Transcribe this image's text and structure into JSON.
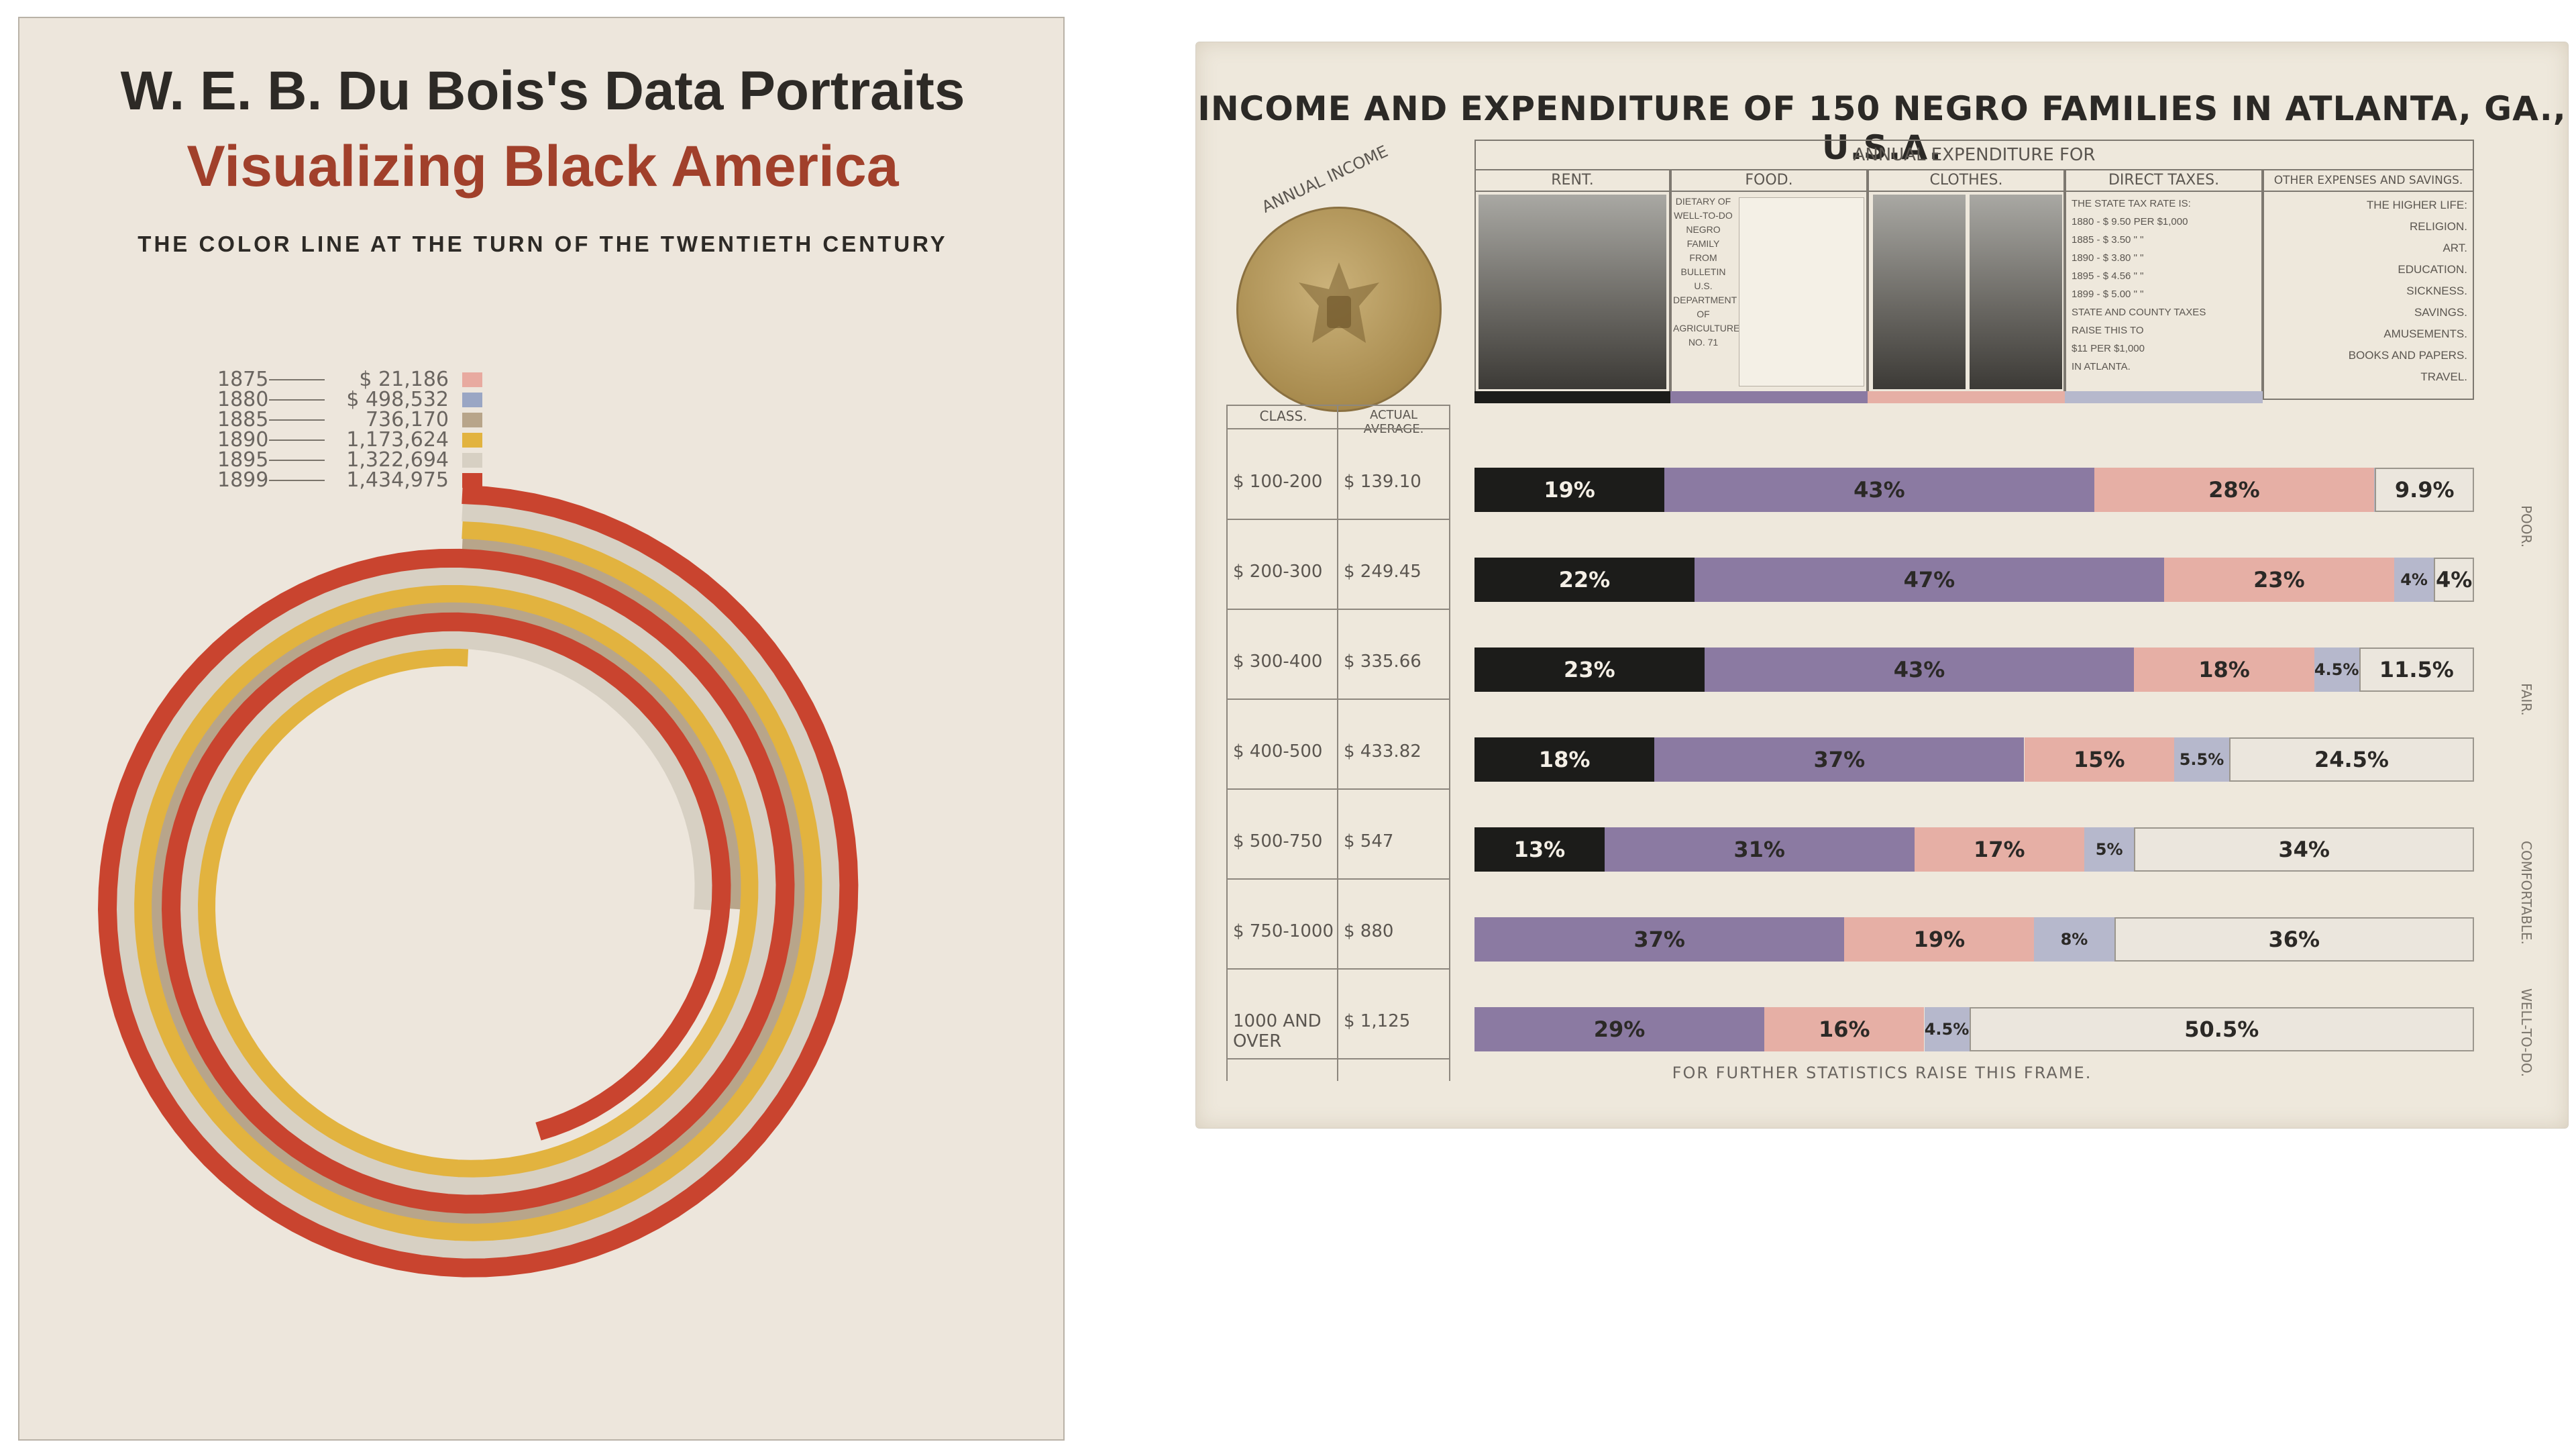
{
  "cover": {
    "title": "W. E. B. Du Bois's Data Portraits",
    "subtitle": "Visualizing Black America",
    "tagline": "THE COLOR LINE AT THE TURN OF THE TWENTIETH CENTURY",
    "legend": [
      {
        "year": "1875",
        "value": "$ 21,186"
      },
      {
        "year": "1880",
        "value": "$ 498,532"
      },
      {
        "year": "1885",
        "value": "736,170"
      },
      {
        "year": "1890",
        "value": "1,173,624"
      },
      {
        "year": "1895",
        "value": "1,322,694"
      },
      {
        "year": "1899",
        "value": "1,434,975"
      }
    ]
  },
  "plate": {
    "title": "INCOME AND EXPENDITURE OF 150 NEGRO FAMILIES IN ATLANTA, GA., U.S.A.",
    "annual_income_label": "ANNUAL INCOME",
    "expenditure_header": "ANNUAL EXPENDITURE FOR",
    "categories": [
      "RENT.",
      "FOOD.",
      "CLOTHES.",
      "DIRECT TAXES.",
      "OTHER EXPENSES AND SAVINGS."
    ],
    "food_cell_text": [
      "DIETARY OF",
      "WELL-TO-DO",
      "NEGRO",
      "FAMILY",
      "FROM",
      "BULLETIN",
      "U.S.",
      "DEPARTMENT",
      "OF",
      "AGRICULTURE",
      "NO. 71"
    ],
    "taxes_cell_text": [
      "THE STATE TAX RATE IS:",
      "1880 - $ 9.50 PER $1,000",
      "1885 - $ 3.50 \" \"",
      "1890 - $ 3.80 \" \"",
      "1895 - $ 4.56 \" \"",
      "1899 - $ 5.00 \" \"",
      "STATE AND COUNTY TAXES",
      "RAISE THIS TO",
      "$11 PER $1,000",
      "IN ATLANTA."
    ],
    "other_cell_text": [
      "THE HIGHER LIFE:",
      "RELIGION.",
      "ART.",
      "EDUCATION.",
      "SICKNESS.",
      "SAVINGS.",
      "AMUSEMENTS.",
      "BOOKS AND PAPERS.",
      "TRAVEL."
    ],
    "class_header": "CLASS.",
    "avg_header": "ACTUAL AVERAGE.",
    "footer": "FOR FURTHER STATISTICS RAISE THIS FRAME.",
    "side_labels": [
      "POOR.",
      "FAIR.",
      "COMFORTABLE.",
      "WELL-TO-DO."
    ]
  },
  "chart_data": [
    {
      "type": "spiral",
      "series_name": "",
      "categories": [
        "1875",
        "1880",
        "1885",
        "1890",
        "1895",
        "1899"
      ],
      "values": [
        21186,
        498532,
        736170,
        1173624,
        1322694,
        1434975
      ],
      "colors": [
        "#e8aaa0",
        "#9aa6c4",
        "#b8a58a",
        "#e2b33f",
        "#d7d0c3",
        "#c9442f"
      ]
    },
    {
      "type": "bar",
      "stacked": true,
      "orientation": "horizontal",
      "title": "INCOME AND EXPENDITURE OF 150 NEGRO FAMILIES IN ATLANTA, GA., U.S.A.",
      "categories": [
        "$ 100-200",
        "$ 200-300",
        "$ 300-400",
        "$ 400-500",
        "$ 500-750",
        "$ 750-1000",
        "1000 AND OVER"
      ],
      "actual_average": [
        "$ 139.10",
        "$ 249.45",
        "$ 335.66",
        "$ 433.82",
        "$ 547",
        "$ 880",
        "$ 1,125"
      ],
      "series": [
        {
          "name": "RENT.",
          "color": "#1c1c1a",
          "values": [
            19,
            22,
            23,
            18,
            13,
            0,
            0
          ],
          "labels": [
            "19%",
            "22%",
            "23%",
            "18%",
            "13%",
            "",
            ""
          ]
        },
        {
          "name": "FOOD.",
          "color": "#8b7aa2",
          "values": [
            43,
            47,
            43,
            37,
            31,
            37,
            29
          ],
          "labels": [
            "43%",
            "47%",
            "43%",
            "37%",
            "31%",
            "37%",
            "29%"
          ]
        },
        {
          "name": "CLOTHES.",
          "color": "#e6afa5",
          "values": [
            28,
            23,
            18,
            15,
            17,
            19,
            16
          ],
          "labels": [
            "28%",
            "23%",
            "18%",
            "15%",
            "17%",
            "19%",
            "16%"
          ]
        },
        {
          "name": "DIRECT TAXES.",
          "color": "#b6b8cc",
          "values": [
            0.1,
            4,
            4.5,
            5.5,
            5,
            8,
            4.5
          ],
          "labels": [
            "",
            "4%",
            "4.5%",
            "5.5%",
            "5%",
            "8%",
            "4.5%"
          ]
        },
        {
          "name": "OTHER EXPENSES AND SAVINGS.",
          "color": "#ebe6dd",
          "values": [
            9.9,
            4,
            11.5,
            24.5,
            34,
            36,
            50.5
          ],
          "labels": [
            "9.9%",
            "4%",
            "11.5%",
            "24.5%",
            "34%",
            "36%",
            "50.5%"
          ]
        }
      ],
      "xlim": [
        0,
        100
      ]
    }
  ]
}
